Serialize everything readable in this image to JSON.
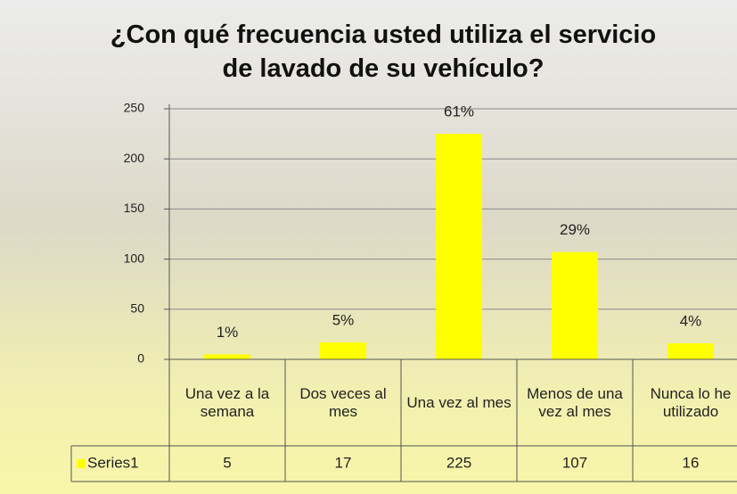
{
  "chart_data": {
    "type": "bar",
    "title": "¿Con qué frecuencia usted utiliza el servicio de lavado de su vehículo?",
    "categories": [
      "Una vez a la semana",
      "Dos veces al mes",
      "Una vez al mes",
      "Menos de una vez al mes",
      "Nunca lo he utilizado"
    ],
    "series": [
      {
        "name": "Series1",
        "color": "#ffff00",
        "values": [
          5,
          17,
          225,
          107,
          16
        ]
      }
    ],
    "annotations": [
      "1%",
      "5%",
      "61%",
      "29%",
      "4%"
    ],
    "ylim": [
      0,
      250
    ],
    "yticks": [
      0,
      50,
      100,
      150,
      200,
      250
    ],
    "grid": true,
    "data_table": true
  }
}
